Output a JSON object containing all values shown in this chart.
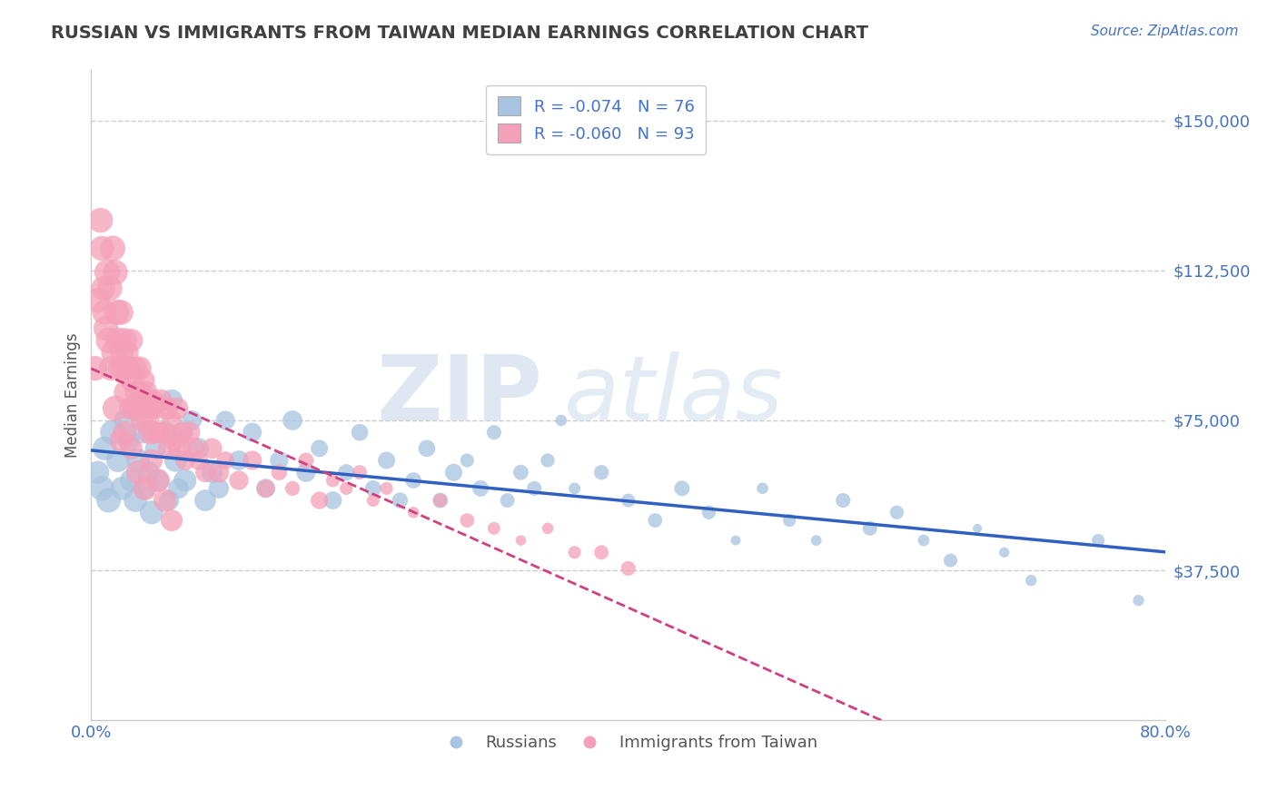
{
  "title": "RUSSIAN VS IMMIGRANTS FROM TAIWAN MEDIAN EARNINGS CORRELATION CHART",
  "source": "Source: ZipAtlas.com",
  "ylabel": "Median Earnings",
  "xmin": 0.0,
  "xmax": 0.8,
  "ymin": 0,
  "ymax": 162500,
  "yticks": [
    37500,
    75000,
    112500,
    150000
  ],
  "ytick_labels": [
    "$37,500",
    "$75,000",
    "$112,500",
    "$150,000"
  ],
  "blue_R": -0.074,
  "blue_N": 76,
  "pink_R": -0.06,
  "pink_N": 93,
  "blue_color": "#a8c4e0",
  "pink_color": "#f4a0b8",
  "blue_line_color": "#3060c0",
  "pink_line_color": "#d04080",
  "title_color": "#404040",
  "grid_color": "#cccccc",
  "blue_x": [
    0.005,
    0.008,
    0.01,
    0.013,
    0.016,
    0.02,
    0.023,
    0.025,
    0.028,
    0.03,
    0.033,
    0.035,
    0.038,
    0.04,
    0.043,
    0.045,
    0.048,
    0.05,
    0.055,
    0.058,
    0.06,
    0.063,
    0.065,
    0.068,
    0.07,
    0.075,
    0.08,
    0.085,
    0.09,
    0.095,
    0.1,
    0.11,
    0.12,
    0.13,
    0.14,
    0.15,
    0.16,
    0.17,
    0.18,
    0.19,
    0.2,
    0.21,
    0.22,
    0.23,
    0.24,
    0.25,
    0.26,
    0.27,
    0.28,
    0.29,
    0.3,
    0.31,
    0.32,
    0.33,
    0.34,
    0.35,
    0.36,
    0.38,
    0.4,
    0.42,
    0.44,
    0.46,
    0.48,
    0.5,
    0.52,
    0.54,
    0.56,
    0.58,
    0.6,
    0.62,
    0.64,
    0.66,
    0.68,
    0.7,
    0.75,
    0.78
  ],
  "blue_y": [
    62000,
    58000,
    68000,
    55000,
    72000,
    65000,
    58000,
    75000,
    70000,
    60000,
    55000,
    65000,
    72000,
    58000,
    62000,
    52000,
    68000,
    60000,
    72000,
    55000,
    80000,
    65000,
    58000,
    72000,
    60000,
    75000,
    68000,
    55000,
    62000,
    58000,
    75000,
    65000,
    72000,
    58000,
    65000,
    75000,
    62000,
    68000,
    55000,
    62000,
    72000,
    58000,
    65000,
    55000,
    60000,
    68000,
    55000,
    62000,
    65000,
    58000,
    72000,
    55000,
    62000,
    58000,
    65000,
    75000,
    58000,
    62000,
    55000,
    50000,
    58000,
    52000,
    45000,
    58000,
    50000,
    45000,
    55000,
    48000,
    52000,
    45000,
    40000,
    48000,
    42000,
    35000,
    45000,
    30000
  ],
  "pink_x": [
    0.003,
    0.005,
    0.007,
    0.008,
    0.009,
    0.01,
    0.011,
    0.012,
    0.013,
    0.014,
    0.015,
    0.016,
    0.017,
    0.018,
    0.019,
    0.02,
    0.021,
    0.022,
    0.023,
    0.024,
    0.025,
    0.026,
    0.027,
    0.028,
    0.029,
    0.03,
    0.031,
    0.032,
    0.033,
    0.034,
    0.035,
    0.036,
    0.037,
    0.038,
    0.039,
    0.04,
    0.041,
    0.042,
    0.043,
    0.044,
    0.045,
    0.046,
    0.047,
    0.048,
    0.05,
    0.052,
    0.054,
    0.056,
    0.058,
    0.06,
    0.062,
    0.064,
    0.066,
    0.068,
    0.07,
    0.073,
    0.076,
    0.08,
    0.085,
    0.09,
    0.095,
    0.1,
    0.11,
    0.12,
    0.13,
    0.14,
    0.15,
    0.16,
    0.17,
    0.18,
    0.19,
    0.2,
    0.21,
    0.22,
    0.24,
    0.26,
    0.28,
    0.3,
    0.32,
    0.34,
    0.36,
    0.38,
    0.4,
    0.025,
    0.03,
    0.035,
    0.04,
    0.045,
    0.05,
    0.055,
    0.06,
    0.018,
    0.022
  ],
  "pink_y": [
    88000,
    105000,
    125000,
    118000,
    108000,
    102000,
    98000,
    112000,
    95000,
    108000,
    88000,
    118000,
    92000,
    112000,
    102000,
    95000,
    88000,
    102000,
    92000,
    88000,
    95000,
    82000,
    92000,
    88000,
    78000,
    95000,
    85000,
    78000,
    88000,
    82000,
    78000,
    88000,
    82000,
    75000,
    85000,
    78000,
    82000,
    75000,
    80000,
    72000,
    78000,
    80000,
    72000,
    78000,
    72000,
    80000,
    72000,
    78000,
    68000,
    75000,
    70000,
    78000,
    68000,
    72000,
    65000,
    72000,
    68000,
    65000,
    62000,
    68000,
    62000,
    65000,
    60000,
    65000,
    58000,
    62000,
    58000,
    65000,
    55000,
    60000,
    58000,
    62000,
    55000,
    58000,
    52000,
    55000,
    50000,
    48000,
    45000,
    48000,
    42000,
    42000,
    38000,
    72000,
    68000,
    62000,
    58000,
    65000,
    60000,
    55000,
    50000,
    78000,
    70000
  ]
}
